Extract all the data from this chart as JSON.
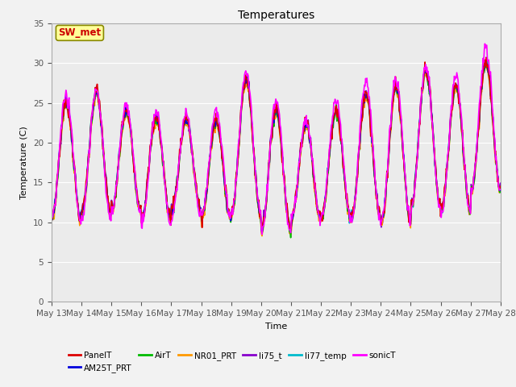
{
  "title": "Temperatures",
  "xlabel": "Time",
  "ylabel": "Temperature (C)",
  "ylim": [
    0,
    35
  ],
  "yticks": [
    0,
    5,
    10,
    15,
    20,
    25,
    30,
    35
  ],
  "x_labels": [
    "May 13",
    "May 14",
    "May 15",
    "May 16",
    "May 17",
    "May 18",
    "May 19",
    "May 20",
    "May 21",
    "May 22",
    "May 23",
    "May 24",
    "May 25",
    "May 26",
    "May 27",
    "May 28"
  ],
  "series": {
    "PanelT": {
      "color": "#dd0000",
      "lw": 1.2
    },
    "AM25T_PRT": {
      "color": "#0000dd",
      "lw": 1.2
    },
    "AirT": {
      "color": "#00bb00",
      "lw": 1.2
    },
    "NR01_PRT": {
      "color": "#ff9900",
      "lw": 1.2
    },
    "li75_t": {
      "color": "#8800cc",
      "lw": 1.2
    },
    "li77_temp": {
      "color": "#00bbcc",
      "lw": 1.2
    },
    "sonicT": {
      "color": "#ff00ff",
      "lw": 1.2
    }
  },
  "annotation_text": "SW_met",
  "annotation_color": "#cc0000",
  "annotation_bg": "#ffff99",
  "annotation_border": "#888800",
  "plot_bg": "#ebebeb",
  "fig_bg": "#f2f2f2",
  "n_days": 15,
  "pts_per_day": 48,
  "legend_order": [
    "PanelT",
    "AM25T_PRT",
    "AirT",
    "NR01_PRT",
    "li75_t",
    "li77_temp",
    "sonicT"
  ]
}
